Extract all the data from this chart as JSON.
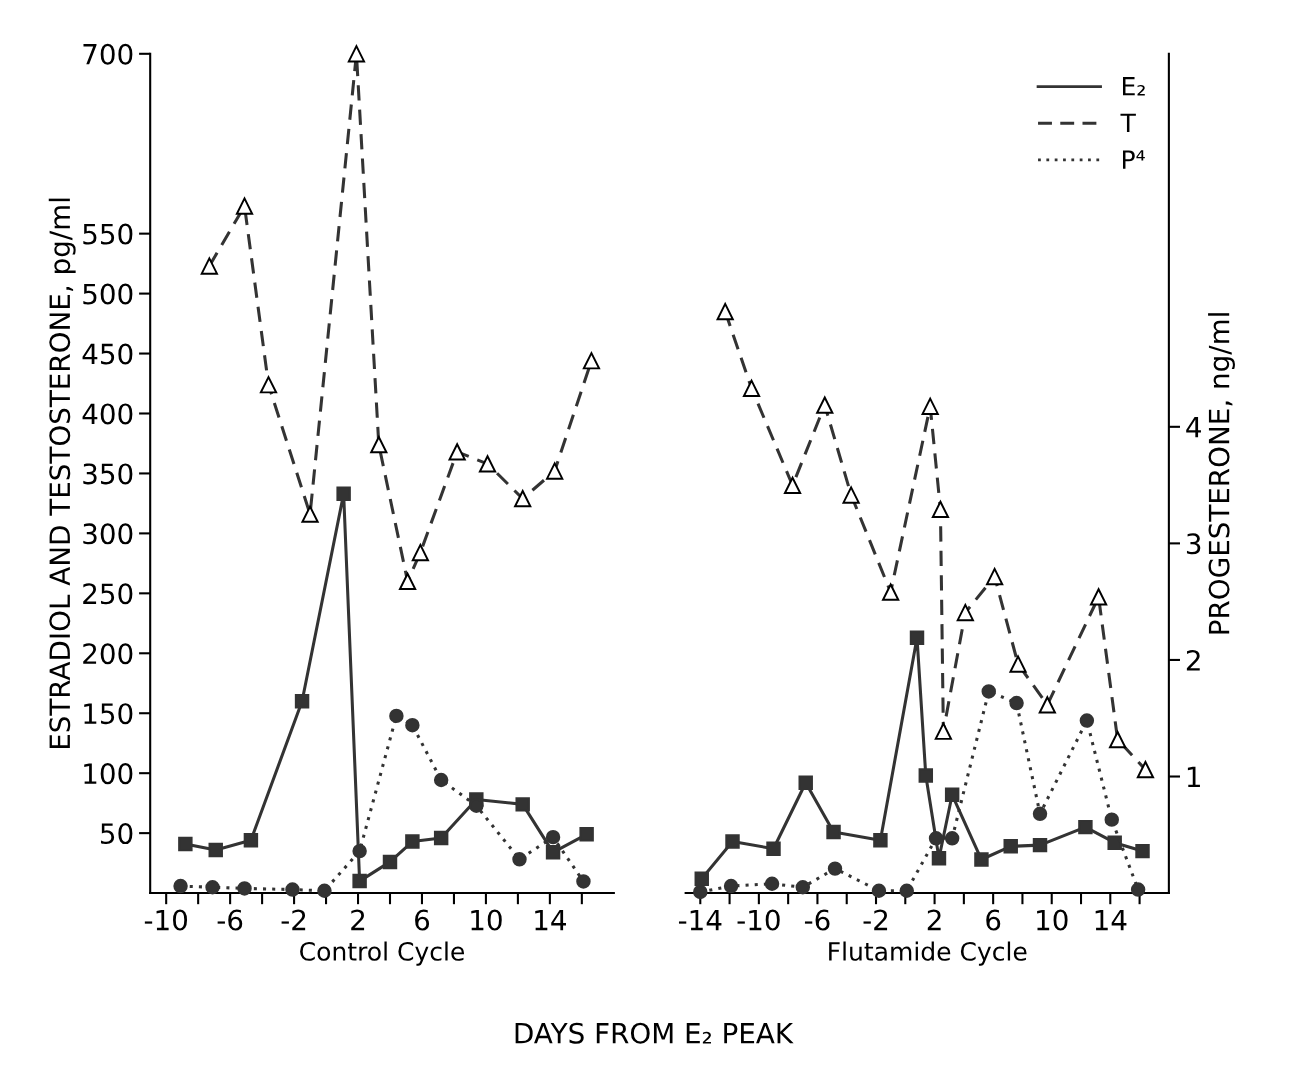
{
  "chart_data": [
    {
      "type": "line",
      "xlabel": "Control Cycle",
      "ylabel": "ESTRADIOL AND TESTOSTERONE, pg/ml",
      "annotations": [
        "DAYS FROM E₂ PEAK"
      ],
      "xlim": [
        -11,
        18
      ],
      "xticks": [
        -10,
        {
          "value": -8,
          "label": null
        },
        -6,
        {
          "value": -4,
          "label": null
        },
        -2,
        {
          "value": 0,
          "label": null
        },
        2,
        {
          "value": 4,
          "label": null
        },
        6,
        {
          "value": 8,
          "label": null
        },
        10,
        {
          "value": 12,
          "label": null
        },
        14,
        {
          "value": 16,
          "label": null
        }
      ],
      "ylim": [
        0,
        700
      ],
      "yticks": [
        50,
        100,
        150,
        200,
        250,
        300,
        350,
        400,
        450,
        500,
        550,
        700
      ],
      "y2lim": [
        0,
        7.2
      ],
      "grid": false,
      "legend": false,
      "series": [
        {
          "color": "#333333",
          "marker": "square",
          "line_style": "solid",
          "x": [
            -8.8,
            -6.9,
            -4.7,
            -1.5,
            1.1,
            2.1,
            4.0,
            5.4,
            7.2,
            9.4,
            12.3,
            14.2,
            16.3
          ],
          "values": [
            41,
            36,
            44,
            160,
            333,
            10,
            26,
            43,
            46,
            78,
            74,
            34,
            49
          ]
        },
        {
          "color": "#333333",
          "marker": "triangle",
          "line_style": "dashed",
          "x": [
            -7.3,
            -5.1,
            -3.6,
            -1.0,
            1.9,
            3.3,
            5.1,
            5.9,
            8.2,
            10.1,
            12.3,
            14.3,
            16.6
          ],
          "values": [
            523,
            573,
            424,
            316,
            700,
            374,
            260,
            284,
            368,
            358,
            329,
            352,
            444
          ]
        },
        {
          "color": "#333333",
          "marker": "circle",
          "line_style": "dotted",
          "axis": "y2",
          "x": [
            -9.1,
            -7.1,
            -5.1,
            -2.1,
            -0.1,
            2.1,
            4.4,
            5.4,
            7.2,
            9.4,
            12.1,
            14.2,
            16.1
          ],
          "values": [
            0.06,
            0.05,
            0.04,
            0.03,
            0.02,
            0.36,
            1.52,
            1.44,
            0.97,
            0.75,
            0.29,
            0.48,
            0.1
          ]
        }
      ]
    },
    {
      "type": "line",
      "xlabel": "Flutamide Cycle",
      "y2label": "PROGESTERONE, ng/ml",
      "xlim": [
        -15,
        18
      ],
      "xticks": [
        -14,
        {
          "value": -12,
          "label": null
        },
        -10,
        {
          "value": -8,
          "label": null
        },
        -6,
        {
          "value": -4,
          "label": null
        },
        -2,
        {
          "value": 0,
          "label": null
        },
        2,
        {
          "value": 4,
          "label": null
        },
        6,
        {
          "value": 8,
          "label": null
        },
        10,
        {
          "value": 12,
          "label": null
        },
        14,
        {
          "value": 16,
          "label": null
        }
      ],
      "ylim": [
        0,
        700
      ],
      "y2lim": [
        0,
        7.2
      ],
      "y2ticks": [
        1,
        2,
        3,
        4
      ],
      "grid": false,
      "legend": "top right",
      "series": [
        {
          "name": "E₂",
          "color": "#333333",
          "marker": "square",
          "line_style": "solid",
          "x": [
            -13.9,
            -11.8,
            -9.0,
            -6.8,
            -4.9,
            -1.7,
            0.8,
            1.4,
            2.3,
            3.2,
            5.2,
            7.2,
            9.2,
            12.3,
            14.3,
            16.2
          ],
          "values": [
            12,
            43,
            37,
            92,
            51,
            44,
            213,
            98,
            29,
            82,
            28,
            39,
            40,
            55,
            42,
            35
          ]
        },
        {
          "name": "T",
          "color": "#333333",
          "marker": "triangle",
          "line_style": "dashed",
          "x": [
            -12.3,
            -10.5,
            -7.7,
            -5.5,
            -3.7,
            -1.0,
            1.7,
            2.4,
            2.6,
            4.1,
            6.1,
            7.7,
            9.7,
            13.2,
            14.5,
            16.4
          ],
          "values": [
            485,
            421,
            340,
            407,
            332,
            251,
            406,
            320,
            135,
            234,
            264,
            191,
            157,
            247,
            128,
            103
          ]
        },
        {
          "name": "P⁴",
          "color": "#333333",
          "marker": "circle",
          "line_style": "dotted",
          "axis": "y2",
          "x": [
            -14.0,
            -11.9,
            -9.1,
            -7.0,
            -4.8,
            -1.8,
            0.1,
            2.1,
            3.2,
            5.7,
            7.6,
            9.2,
            12.4,
            14.1,
            15.9
          ],
          "values": [
            0.01,
            0.06,
            0.08,
            0.05,
            0.21,
            0.02,
            0.02,
            0.47,
            0.47,
            1.73,
            1.63,
            0.68,
            1.48,
            0.63,
            0.03
          ]
        }
      ]
    }
  ]
}
